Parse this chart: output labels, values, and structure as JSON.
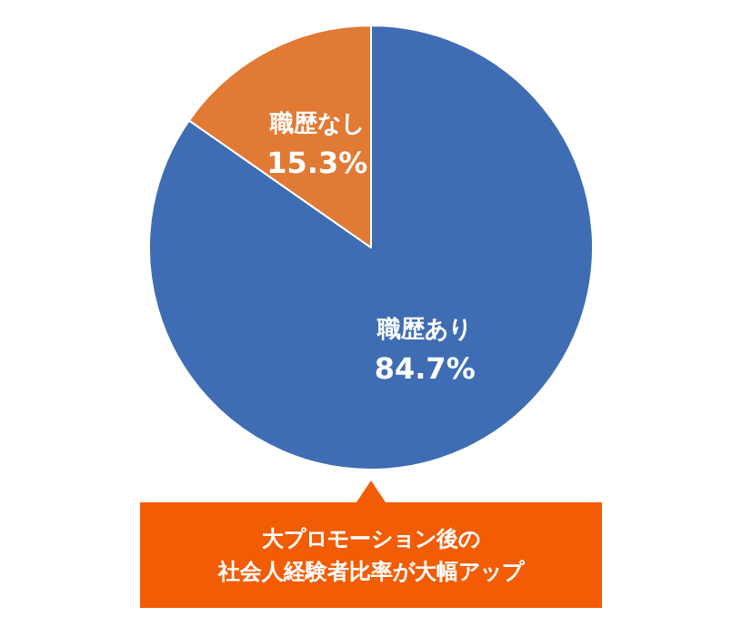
{
  "chart_data": {
    "type": "pie",
    "categories": [
      "職歴あり",
      "職歴なし"
    ],
    "values": [
      84.7,
      15.3
    ],
    "colors": [
      "#3f6db3",
      "#e07a35"
    ],
    "value_labels": [
      "84.7%",
      "15.3%"
    ],
    "annotations": [
      "大プロモーション後の",
      "社会人経験者比率が大幅アップ"
    ]
  }
}
